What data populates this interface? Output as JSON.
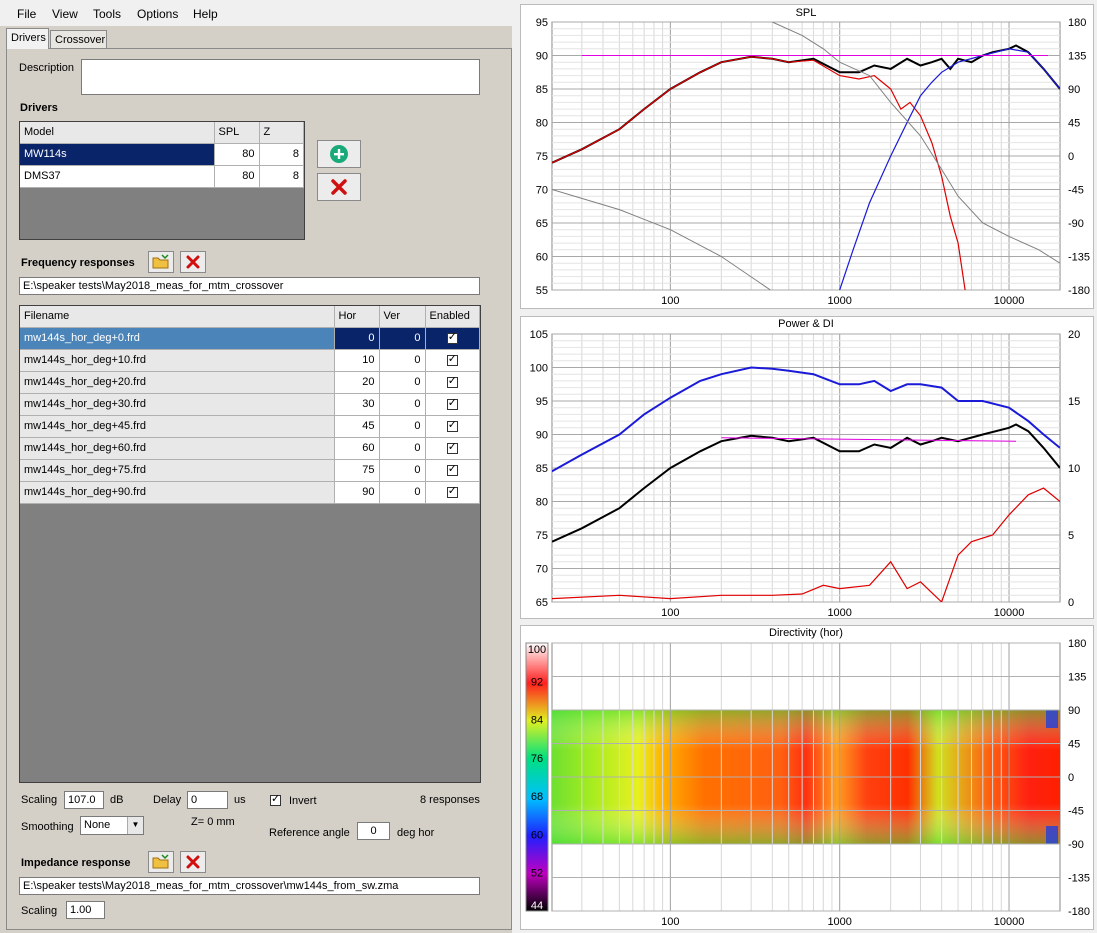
{
  "menu": [
    "File",
    "View",
    "Tools",
    "Options",
    "Help"
  ],
  "tabs": [
    "Drivers",
    "Crossover"
  ],
  "description": {
    "label": "Description",
    "value": ""
  },
  "drivers": {
    "title": "Drivers",
    "columns": [
      "Model",
      "SPL",
      "Z"
    ],
    "rows": [
      {
        "model": "MW114s",
        "spl": "80",
        "z": "8"
      },
      {
        "model": "DMS37",
        "spl": "80",
        "z": "8"
      }
    ]
  },
  "freq": {
    "title": "Frequency responses",
    "path": "E:\\speaker tests\\May2018_meas_for_mtm_crossover",
    "columns": [
      "Filename",
      "Hor",
      "Ver",
      "Enabled"
    ],
    "rows": [
      {
        "file": "mw144s_hor_deg+0.frd",
        "hor": "0",
        "ver": "0"
      },
      {
        "file": "mw144s_hor_deg+10.frd",
        "hor": "10",
        "ver": "0"
      },
      {
        "file": "mw144s_hor_deg+20.frd",
        "hor": "20",
        "ver": "0"
      },
      {
        "file": "mw144s_hor_deg+30.frd",
        "hor": "30",
        "ver": "0"
      },
      {
        "file": "mw144s_hor_deg+45.frd",
        "hor": "45",
        "ver": "0"
      },
      {
        "file": "mw144s_hor_deg+60.frd",
        "hor": "60",
        "ver": "0"
      },
      {
        "file": "mw144s_hor_deg+75.frd",
        "hor": "75",
        "ver": "0"
      },
      {
        "file": "mw144s_hor_deg+90.frd",
        "hor": "90",
        "ver": "0"
      }
    ]
  },
  "controls": {
    "scaling_label": "Scaling",
    "scaling_value": "107.0",
    "scaling_unit": "dB",
    "delay_label": "Delay",
    "delay_value": "0",
    "delay_unit": "us",
    "invert_label": "Invert",
    "responses_count": "8 responses",
    "smoothing_label": "Smoothing",
    "smoothing_value": "None",
    "z_label": "Z= 0 mm",
    "ref_angle_label": "Reference angle",
    "ref_angle_value": "0",
    "ref_angle_unit": "deg hor"
  },
  "impedance": {
    "title": "Impedance response",
    "path": "E:\\speaker tests\\May2018_meas_for_mtm_crossover\\mw144s_from_sw.zma",
    "scaling_label": "Scaling",
    "scaling_value": "1.00"
  },
  "colors": {
    "selection": "#0a246a",
    "spl_black": "#000000",
    "red": "#e00000",
    "blue": "#1a1ad8",
    "magenta": "#e000e0",
    "gray": "#808080"
  },
  "chart_data": [
    {
      "type": "line",
      "title": "SPL",
      "x_scale": "log",
      "xlim": [
        20,
        20000
      ],
      "x_ticks": [
        "100",
        "1000",
        "10000"
      ],
      "ylim": [
        55,
        95
      ],
      "y_ticks": [
        "55",
        "60",
        "65",
        "70",
        "75",
        "80",
        "85",
        "90",
        "95"
      ],
      "y2lim": [
        -180,
        180
      ],
      "y2_ticks": [
        "-180",
        "-135",
        "-90",
        "-45",
        "0",
        "45",
        "90",
        "135",
        "180"
      ],
      "series": [
        {
          "color": "black",
          "x": [
            20,
            30,
            50,
            70,
            100,
            150,
            200,
            300,
            400,
            500,
            700,
            1000,
            1300,
            1600,
            2000,
            2500,
            3000,
            3500,
            4000,
            4500,
            5000,
            6000,
            7000,
            8000,
            10000,
            11000,
            13000,
            16000,
            20000
          ],
          "y": [
            74,
            76,
            79,
            82,
            85,
            87.5,
            89,
            89.8,
            89.5,
            89,
            89.5,
            87.5,
            87.5,
            88.5,
            88,
            89.5,
            88.5,
            89,
            89.5,
            88,
            89.5,
            89,
            90,
            90.5,
            91,
            91.5,
            90.5,
            88,
            85
          ]
        },
        {
          "color": "red",
          "x": [
            20,
            30,
            50,
            70,
            100,
            150,
            200,
            300,
            400,
            500,
            700,
            1000,
            1300,
            1600,
            2000,
            2300,
            2600,
            3000,
            3500,
            4000,
            4500,
            5000,
            5500
          ],
          "y": [
            74,
            76,
            79,
            82,
            85,
            87.5,
            89,
            89.8,
            89.5,
            89,
            89.3,
            87,
            86.5,
            87,
            85,
            82,
            83,
            81,
            77,
            72,
            66,
            62,
            55
          ]
        },
        {
          "color": "blue",
          "x": [
            1000,
            1200,
            1500,
            2000,
            2500,
            3000,
            3500,
            4000,
            5000,
            7000,
            10000,
            13000,
            16000,
            20000
          ],
          "y": [
            55,
            61,
            68,
            75,
            80,
            84,
            86,
            87.5,
            89,
            90,
            91,
            90.5,
            88,
            85
          ]
        },
        {
          "color": "gray",
          "x": [
            20,
            50,
            100,
            200,
            390
          ],
          "y": [
            70,
            67,
            64,
            60,
            55
          ]
        },
        {
          "color": "gray",
          "x": [
            400,
            600,
            800,
            1000,
            1500,
            2000,
            3000,
            4000,
            5000,
            7000,
            10000,
            15000,
            20000
          ],
          "y": [
            95,
            93,
            91,
            89,
            87,
            83,
            78,
            73,
            69,
            65,
            63,
            61,
            59
          ]
        },
        {
          "color": "magenta",
          "x": [
            30,
            17000
          ],
          "y": [
            90,
            90
          ]
        }
      ]
    },
    {
      "type": "line",
      "title": "Power & DI",
      "x_scale": "log",
      "xlim": [
        20,
        20000
      ],
      "x_ticks": [
        "100",
        "1000",
        "10000"
      ],
      "ylim": [
        65,
        105
      ],
      "y_ticks": [
        "65",
        "70",
        "75",
        "80",
        "85",
        "90",
        "95",
        "100",
        "105"
      ],
      "y2lim": [
        0,
        20
      ],
      "y2_ticks": [
        "0",
        "5",
        "10",
        "15",
        "20"
      ],
      "series": [
        {
          "color": "blue",
          "x": [
            20,
            30,
            50,
            70,
            100,
            150,
            200,
            300,
            400,
            500,
            700,
            1000,
            1300,
            1600,
            2000,
            2500,
            3000,
            4000,
            5000,
            7000,
            10000,
            13000,
            16000,
            20000
          ],
          "y": [
            84.5,
            87,
            90,
            93,
            95.5,
            98,
            99,
            100,
            99.8,
            99.5,
            99,
            97.5,
            97.5,
            98,
            96.5,
            97.5,
            97.5,
            97,
            95,
            95,
            94,
            92,
            90,
            88
          ]
        },
        {
          "color": "black",
          "x": [
            20,
            30,
            50,
            70,
            100,
            150,
            200,
            300,
            400,
            500,
            700,
            1000,
            1300,
            1600,
            2000,
            2500,
            3000,
            3500,
            4000,
            5000,
            7000,
            10000,
            11000,
            13000,
            16000,
            20000
          ],
          "y": [
            74,
            76,
            79,
            82,
            85,
            87.5,
            89,
            89.8,
            89.5,
            89,
            89.5,
            87.5,
            87.5,
            88.5,
            88,
            89.5,
            88.5,
            89,
            89.5,
            89,
            90,
            91,
            91.5,
            90.5,
            88,
            85
          ]
        },
        {
          "color": "magenta",
          "x": [
            200,
            11000
          ],
          "y": [
            89.5,
            89
          ]
        },
        {
          "color": "red",
          "x": [
            20,
            50,
            100,
            200,
            400,
            600,
            800,
            1000,
            1500,
            2000,
            2500,
            3000,
            4000,
            5000,
            6000,
            8000,
            10000,
            13000,
            16000,
            20000
          ],
          "y": [
            65.5,
            66,
            65.5,
            66,
            66,
            66.2,
            67.5,
            67,
            67.5,
            71,
            67,
            68,
            65,
            72,
            74,
            75,
            78,
            81,
            82,
            80
          ]
        }
      ]
    },
    {
      "type": "heatmap",
      "title": "Directivity (hor)",
      "x_scale": "log",
      "xlim": [
        20,
        20000
      ],
      "x_ticks": [
        "100",
        "1000",
        "10000"
      ],
      "y_ticks": [
        "-180",
        "-135",
        "-90",
        "-45",
        "0",
        "45",
        "90",
        "135",
        "180"
      ],
      "colorbar_ticks": [
        "44",
        "52",
        "60",
        "68",
        "76",
        "84",
        "92",
        "100"
      ],
      "colorbar_range": [
        44,
        100
      ]
    }
  ]
}
